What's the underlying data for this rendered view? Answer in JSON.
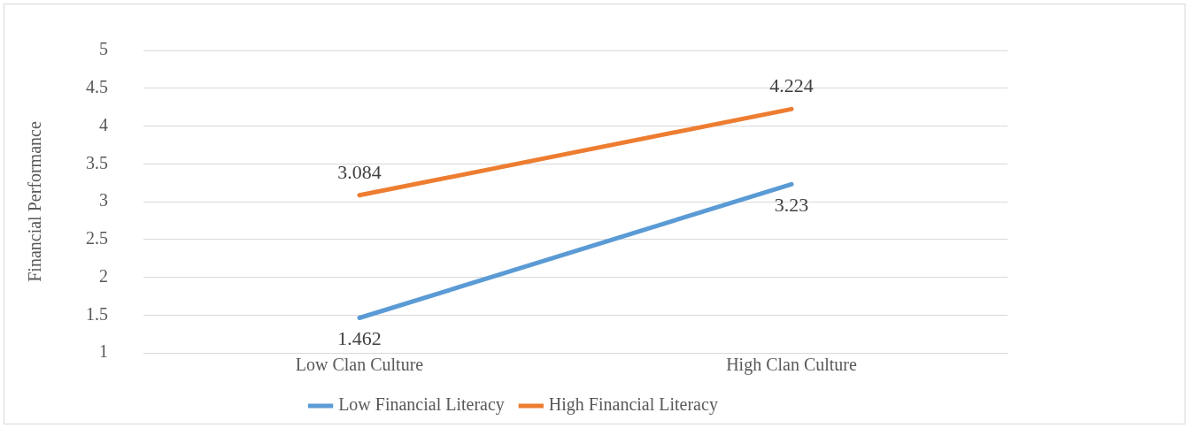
{
  "chart_data": {
    "type": "line",
    "ylabel": "Financial Performance",
    "categories": [
      "Low Clan Culture",
      "High Clan Culture"
    ],
    "series": [
      {
        "name": "Low Financial Literacy",
        "color": "#5b9bd5",
        "values": [
          1.462,
          3.23
        ]
      },
      {
        "name": "High Financial Literacy",
        "color": "#ed7d31",
        "values": [
          3.084,
          4.224
        ]
      }
    ],
    "ylim": [
      1,
      5
    ],
    "yticks": [
      1,
      1.5,
      2,
      2.5,
      3,
      3.5,
      4,
      4.5,
      5
    ],
    "grid": "y",
    "legend": "bottom",
    "marker": "none",
    "line_style": "solid",
    "data_labels": true
  }
}
